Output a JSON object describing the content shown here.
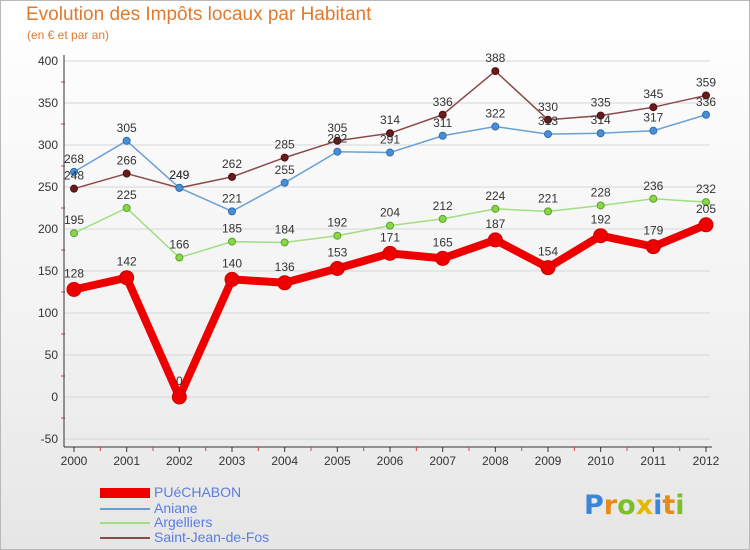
{
  "title": "Evolution des Impôts locaux par Habitant",
  "subtitle": "(en € et par an)",
  "colors": {
    "title": "#e07a2e",
    "legend_text": "#5a7de0",
    "puechabon": "#ee0000",
    "aniane": "#6a9fd4",
    "argelliers": "#9fdf7f",
    "saint_jean": "#8b4a4a"
  },
  "logo": {
    "letters": [
      "P",
      "r",
      "o",
      "x",
      "i",
      "t",
      "i"
    ]
  },
  "chart_data": {
    "type": "line",
    "title": "Evolution des Impôts locaux par Habitant",
    "subtitle": "(en € et par an)",
    "x": [
      "2000",
      "2001",
      "2002",
      "2003",
      "2004",
      "2005",
      "2006",
      "2007",
      "2008",
      "2009",
      "2010",
      "2011",
      "2012"
    ],
    "ylim": [
      -50,
      400
    ],
    "yticks": [
      "-50",
      "0",
      "50",
      "100",
      "150",
      "200",
      "250",
      "300",
      "350",
      "400"
    ],
    "grid": "horizontal",
    "series": [
      {
        "name": "PUéCHABON",
        "values": [
          128,
          142,
          0,
          140,
          136,
          153,
          171,
          165,
          187,
          154,
          192,
          179,
          205
        ],
        "labels": [
          "128",
          "142",
          "0",
          "140",
          "136",
          "153",
          "171",
          "165",
          "187",
          "154",
          "192",
          "179",
          "205"
        ]
      },
      {
        "name": "Aniane",
        "values": [
          268,
          305,
          249,
          221,
          255,
          292,
          291,
          311,
          322,
          313,
          314,
          317,
          336
        ],
        "labels": [
          "268",
          "305",
          "249",
          "221",
          "255",
          "292",
          "291",
          "311",
          "322",
          "313",
          "314",
          "317",
          "336"
        ]
      },
      {
        "name": "Argelliers",
        "values": [
          195,
          225,
          166,
          185,
          184,
          192,
          204,
          212,
          224,
          221,
          228,
          236,
          232
        ],
        "labels": [
          "195",
          "225",
          "166",
          "185",
          "184",
          "192",
          "204",
          "212",
          "224",
          "221",
          "228",
          "236",
          "232"
        ]
      },
      {
        "name": "Saint-Jean-de-Fos",
        "values": [
          248,
          266,
          249,
          262,
          285,
          305,
          314,
          336,
          388,
          330,
          335,
          345,
          359
        ],
        "labels": [
          "248",
          "266",
          "249",
          "262",
          "285",
          "305",
          "314",
          "336",
          "388",
          "330",
          "335",
          "345",
          "359"
        ]
      }
    ]
  }
}
